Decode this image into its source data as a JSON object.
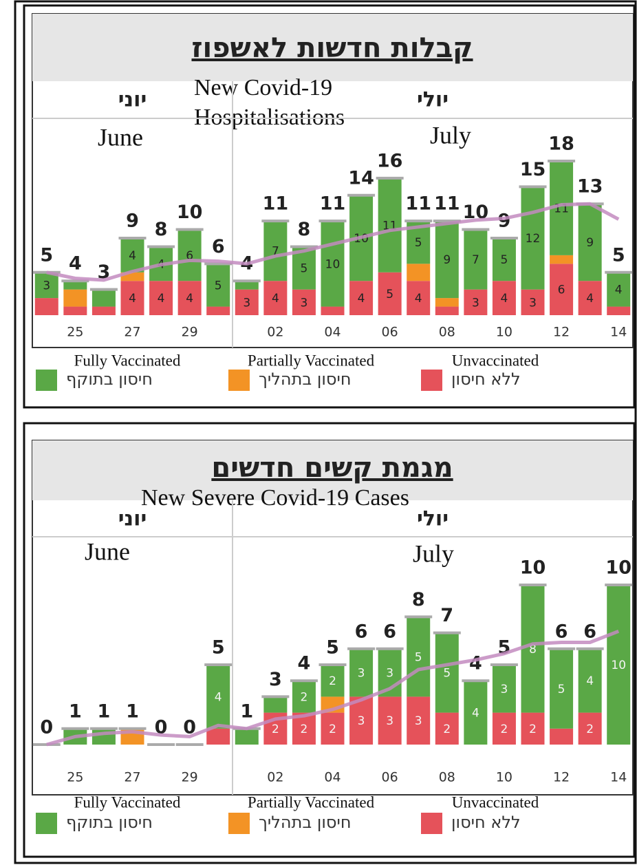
{
  "chart_data": [
    {
      "type": "bar",
      "stacked": true,
      "title": "קבלות חדשות לאשפוז",
      "subtitle": "New Covid-19 Hospitalisations",
      "ylim": [
        0,
        18
      ],
      "months": [
        {
          "label": "יוני",
          "translation": "June",
          "categories": [
            null,
            "25",
            null,
            "27",
            null,
            "29",
            null
          ]
        },
        {
          "label": "יולי",
          "translation": "July",
          "categories": [
            null,
            "02",
            null,
            "04",
            null,
            "06",
            null,
            "08",
            null,
            "10",
            null,
            "12",
            null,
            "14"
          ]
        }
      ],
      "series": [
        {
          "name": "חיסון בתוקף",
          "translation": "Fully Vaccinated",
          "color": "#5aa846",
          "values": [
            3,
            1,
            2,
            4,
            4,
            6,
            5,
            1,
            7,
            5,
            10,
            10,
            11,
            5,
            9,
            7,
            5,
            12,
            11,
            9,
            4
          ],
          "value_labels": [
            "3",
            null,
            null,
            "4",
            "4",
            "6",
            "5",
            null,
            "7",
            "5",
            "10",
            "10",
            "11",
            "5",
            "9",
            "7",
            "5",
            "12",
            "11",
            "9",
            "4"
          ]
        },
        {
          "name": "חיסון בתהליך",
          "translation": "Partially Vaccinated",
          "color": "#f39325",
          "values": [
            0,
            2,
            0,
            1,
            0,
            0,
            0,
            0,
            0,
            0,
            0,
            0,
            0,
            2,
            1,
            0,
            0,
            0,
            1,
            0,
            0
          ],
          "value_labels": [
            null,
            null,
            null,
            null,
            null,
            null,
            null,
            null,
            null,
            null,
            null,
            null,
            null,
            null,
            null,
            null,
            null,
            null,
            null,
            null,
            null
          ]
        },
        {
          "name": "ללא חיסון",
          "translation": "Unvaccinated",
          "color": "#e5525a",
          "values": [
            2,
            1,
            1,
            4,
            4,
            4,
            1,
            3,
            4,
            3,
            1,
            4,
            5,
            4,
            1,
            3,
            4,
            3,
            6,
            4,
            1
          ],
          "value_labels": [
            null,
            null,
            null,
            "4",
            "4",
            "4",
            null,
            "3",
            "4",
            "3",
            null,
            "4",
            "5",
            "4",
            null,
            "3",
            "4",
            "3",
            "6",
            "4",
            null
          ]
        }
      ],
      "totals": [
        5,
        4,
        3,
        9,
        8,
        10,
        6,
        4,
        11,
        8,
        11,
        14,
        16,
        11,
        11,
        10,
        9,
        15,
        18,
        13,
        5
      ],
      "trend": {
        "color": "#c38bbf",
        "values": [
          5.0,
          4.3,
          4.1,
          5.1,
          5.9,
          6.4,
          6.3,
          6.0,
          6.9,
          7.5,
          8.3,
          9.1,
          9.9,
          10.3,
          10.7,
          11.1,
          11.3,
          12.0,
          12.9,
          13.0,
          11.2
        ]
      }
    },
    {
      "type": "bar",
      "stacked": true,
      "title": "מגמת קשים חדשים",
      "subtitle": "New Severe Covid-19 Cases",
      "ylim": [
        0,
        10
      ],
      "months": [
        {
          "label": "יוני",
          "translation": "June",
          "categories": [
            null,
            "25",
            null,
            "27",
            null,
            "29",
            null
          ]
        },
        {
          "label": "יולי",
          "translation": "July",
          "categories": [
            null,
            "02",
            null,
            "04",
            null,
            "06",
            null,
            "08",
            null,
            "10",
            null,
            "12",
            null,
            "14"
          ]
        }
      ],
      "series": [
        {
          "name": "חיסון בתוקף",
          "translation": "Fully Vaccinated",
          "color": "#5aa846",
          "values": [
            0,
            1,
            1,
            0,
            0,
            0,
            4,
            1,
            1,
            2,
            2,
            3,
            3,
            5,
            5,
            4,
            3,
            8,
            5,
            4,
            10
          ],
          "value_labels": [
            null,
            null,
            null,
            null,
            null,
            null,
            "4",
            null,
            null,
            "2",
            "2",
            "3",
            "3",
            "5",
            "5",
            "4",
            "3",
            "8",
            "5",
            "4",
            "10"
          ]
        },
        {
          "name": "חיסון בתהליך",
          "translation": "Partially Vaccinated",
          "color": "#f39325",
          "values": [
            0,
            0,
            0,
            1,
            0,
            0,
            0,
            0,
            0,
            0,
            1,
            0,
            0,
            0,
            0,
            0,
            0,
            0,
            0,
            0,
            0
          ],
          "value_labels": [
            null,
            null,
            null,
            null,
            null,
            null,
            null,
            null,
            null,
            null,
            null,
            null,
            null,
            null,
            null,
            null,
            null,
            null,
            null,
            null,
            null
          ]
        },
        {
          "name": "ללא חיסון",
          "translation": "Unvaccinated",
          "color": "#e5525a",
          "values": [
            0,
            0,
            0,
            0,
            0,
            0,
            1,
            0,
            2,
            2,
            2,
            3,
            3,
            3,
            2,
            0,
            2,
            2,
            1,
            2,
            0
          ],
          "value_labels": [
            null,
            null,
            null,
            null,
            null,
            null,
            null,
            null,
            "2",
            "2",
            "2",
            "3",
            "3",
            "3",
            "2",
            null,
            "2",
            "2",
            null,
            "2",
            null
          ]
        }
      ],
      "totals": [
        0,
        1,
        1,
        1,
        0,
        0,
        5,
        1,
        3,
        4,
        5,
        6,
        6,
        8,
        7,
        4,
        5,
        10,
        6,
        6,
        10
      ],
      "trend": {
        "color": "#c38bbf",
        "values": [
          0,
          0.5,
          0.7,
          0.8,
          0.6,
          0.5,
          1.2,
          1.0,
          1.6,
          1.8,
          2.2,
          2.8,
          3.5,
          4.7,
          5.0,
          5.3,
          5.7,
          6.3,
          6.4,
          6.4,
          7.1
        ]
      }
    }
  ]
}
